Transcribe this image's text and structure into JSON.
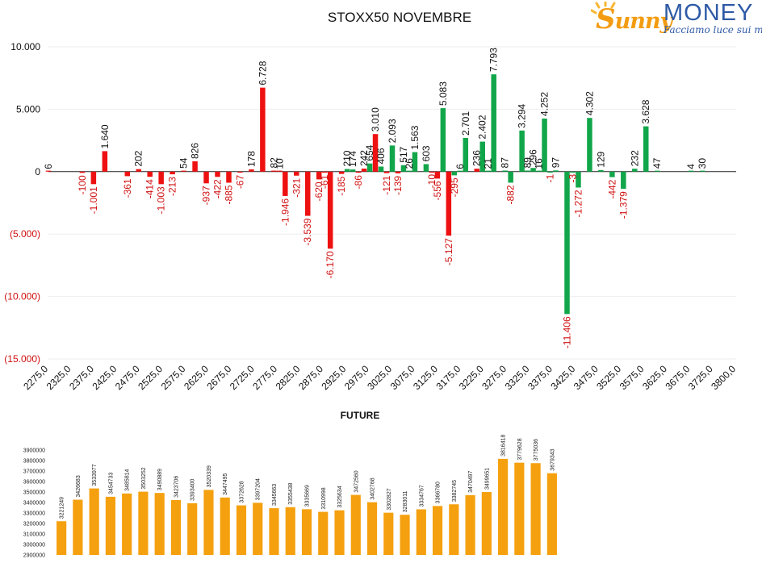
{
  "logo": {
    "word": "unny",
    "brand": "MONEY",
    "tagline": "Facciamo luce sui mercati",
    "colors": {
      "orange": "#f39c12",
      "blue": "#2e5aa6"
    }
  },
  "chart_data": [
    {
      "type": "bar",
      "title": "STOXX50 NOVEMBRE",
      "xlabel": "",
      "ylabel": "",
      "ylim": [
        -15000,
        10000
      ],
      "yticks": [
        10000,
        5000,
        0,
        -5000,
        -10000,
        -15000
      ],
      "ytick_labels": [
        "10.000",
        "5.000",
        "0",
        "(5.000)",
        "(10.000)",
        "(15.000)"
      ],
      "xlim": [
        2275,
        3800
      ],
      "xticks": [
        "2275,0",
        "2325,0",
        "2375,0",
        "2425,0",
        "2475,0",
        "2525,0",
        "2575,0",
        "2625,0",
        "2675,0",
        "2725,0",
        "2775,0",
        "2825,0",
        "2875,0",
        "2925,0",
        "2975,0",
        "3025,0",
        "3075,0",
        "3125,0",
        "3175,0",
        "3225,0",
        "3275,0",
        "3325,0",
        "3375,0",
        "3425,0",
        "3475,0",
        "3525,0",
        "3575,0",
        "3625,0",
        "3675,0",
        "3725,0",
        "3800,0"
      ],
      "colors": {
        "red": "#ee1111",
        "green": "#12a64a"
      },
      "grid": true,
      "legend": "none",
      "series": [
        {
          "color": "red",
          "points": [
            {
              "x": 2275,
              "y": 6,
              "label": "6"
            },
            {
              "x": 2350,
              "y": -100,
              "label": "-100"
            },
            {
              "x": 2375,
              "y": -1001,
              "label": "-1.001"
            },
            {
              "x": 2400,
              "y": 1640,
              "label": "1.640"
            },
            {
              "x": 2450,
              "y": -361,
              "label": "-361"
            },
            {
              "x": 2475,
              "y": 202,
              "label": "202"
            },
            {
              "x": 2500,
              "y": -414,
              "label": "-414"
            },
            {
              "x": 2525,
              "y": -1003,
              "label": "-1.003"
            },
            {
              "x": 2550,
              "y": -213,
              "label": "-213"
            },
            {
              "x": 2575,
              "y": 54,
              "label": "54"
            },
            {
              "x": 2600,
              "y": 826,
              "label": "826"
            },
            {
              "x": 2625,
              "y": -937,
              "label": "-937"
            },
            {
              "x": 2650,
              "y": -422,
              "label": "-422"
            },
            {
              "x": 2675,
              "y": -885,
              "label": "-885"
            },
            {
              "x": 2700,
              "y": -67,
              "label": "-67"
            },
            {
              "x": 2725,
              "y": 178,
              "label": "178"
            },
            {
              "x": 2750,
              "y": 6728,
              "label": "6.728"
            },
            {
              "x": 2775,
              "y": 82,
              "label": "82"
            },
            {
              "x": 2787.5,
              "y": 10,
              "label": "10"
            },
            {
              "x": 2800,
              "y": -1946,
              "label": "-1.946"
            },
            {
              "x": 2825,
              "y": -321,
              "label": "-321"
            },
            {
              "x": 2850,
              "y": -3539,
              "label": "-3.539"
            },
            {
              "x": 2875,
              "y": -620,
              "label": "-620"
            },
            {
              "x": 2887.5,
              "y": -61,
              "label": "-61"
            },
            {
              "x": 2900,
              "y": -6170,
              "label": "-6.170"
            },
            {
              "x": 2925,
              "y": -185,
              "label": "-185"
            },
            {
              "x": 2962.5,
              "y": -86,
              "label": "-86"
            },
            {
              "x": 2975,
              "y": 242,
              "label": "242"
            },
            {
              "x": 3000,
              "y": 3010,
              "label": "3.010"
            },
            {
              "x": 3025,
              "y": -121,
              "label": "-121"
            },
            {
              "x": 3050,
              "y": -139,
              "label": "-139"
            },
            {
              "x": 3125,
              "y": -10,
              "label": "-10"
            },
            {
              "x": 3137.5,
              "y": -556,
              "label": "-556"
            },
            {
              "x": 3162.5,
              "y": -5127,
              "label": "-5.127"
            },
            {
              "x": 3225,
              "y": 236,
              "label": "236"
            }
          ]
        },
        {
          "color": "green",
          "points": [
            {
              "x": 2937.5,
              "y": 210,
              "label": "210"
            },
            {
              "x": 2950,
              "y": 174,
              "label": "174"
            },
            {
              "x": 2987.5,
              "y": 654,
              "label": "654"
            },
            {
              "x": 3012.5,
              "y": 406,
              "label": "406"
            },
            {
              "x": 3037.5,
              "y": 2093,
              "label": "2.093"
            },
            {
              "x": 3062.5,
              "y": 517,
              "label": "517"
            },
            {
              "x": 3075,
              "y": 26,
              "label": "26"
            },
            {
              "x": 3087.5,
              "y": 1563,
              "label": "1.563"
            },
            {
              "x": 3112.5,
              "y": 603,
              "label": "603"
            },
            {
              "x": 3150,
              "y": 5083,
              "label": "5.083"
            },
            {
              "x": 3175,
              "y": -295,
              "label": "-295"
            },
            {
              "x": 3187.5,
              "y": 6,
              "label": "6"
            },
            {
              "x": 3200,
              "y": 2701,
              "label": "2.701"
            },
            {
              "x": 3237.5,
              "y": 2402,
              "label": "2.402"
            },
            {
              "x": 3250,
              "y": 21,
              "label": "21"
            },
            {
              "x": 3262.5,
              "y": 7793,
              "label": "7.793"
            },
            {
              "x": 3287.5,
              "y": 87,
              "label": "87"
            },
            {
              "x": 3300,
              "y": -882,
              "label": "-882"
            },
            {
              "x": 3325,
              "y": 3294,
              "label": "3.294"
            },
            {
              "x": 3337.5,
              "y": 89,
              "label": "89"
            },
            {
              "x": 3350,
              "y": 296,
              "label": "296"
            },
            {
              "x": 3362.5,
              "y": 16,
              "label": "16"
            },
            {
              "x": 3375,
              "y": 4252,
              "label": "4.252"
            },
            {
              "x": 3387.5,
              "y": -1,
              "label": "-1"
            },
            {
              "x": 3400,
              "y": 97,
              "label": "97"
            },
            {
              "x": 3425,
              "y": -11406,
              "label": "-11.406"
            },
            {
              "x": 3437.5,
              "y": -3,
              "label": "-3"
            },
            {
              "x": 3450,
              "y": -1272,
              "label": "-1.272"
            },
            {
              "x": 3475,
              "y": 4302,
              "label": "4.302"
            },
            {
              "x": 3500,
              "y": 129,
              "label": "129"
            },
            {
              "x": 3525,
              "y": -442,
              "label": "-442"
            },
            {
              "x": 3550,
              "y": -1379,
              "label": "-1.379"
            },
            {
              "x": 3575,
              "y": 232,
              "label": "232"
            },
            {
              "x": 3600,
              "y": 3628,
              "label": "3.628"
            },
            {
              "x": 3625,
              "y": 47,
              "label": "47"
            },
            {
              "x": 3700,
              "y": 4,
              "label": "4"
            },
            {
              "x": 3725,
              "y": 30,
              "label": "30"
            }
          ]
        }
      ]
    },
    {
      "type": "bar",
      "title": "FUTURE",
      "xlabel": "",
      "ylabel": "",
      "ylim": [
        2900000,
        3900000
      ],
      "yticks": [
        2900000,
        3000000,
        3100000,
        3200000,
        3300000,
        3400000,
        3500000,
        3600000,
        3700000,
        3800000,
        3900000
      ],
      "ytick_labels": [
        "2900000",
        "3000000",
        "3100000",
        "3200000",
        "3300000",
        "3400000",
        "3500000",
        "3600000",
        "3700000",
        "3800000",
        "3900000"
      ],
      "color": "#f5a00e",
      "legend": "none",
      "values": [
        3221249,
        3426683,
        3533977,
        3454733,
        3485814,
        3503252,
        3490889,
        3423706,
        3393400,
        3520339,
        3447495,
        3372628,
        3397204,
        3345663,
        3355438,
        3335669,
        3310998,
        3325634,
        3472560,
        3402768,
        3302827,
        3283011,
        3334767,
        3366780,
        3382745,
        3470497,
        3499651,
        3816418,
        3779628,
        3775036,
        3679343
      ]
    }
  ]
}
